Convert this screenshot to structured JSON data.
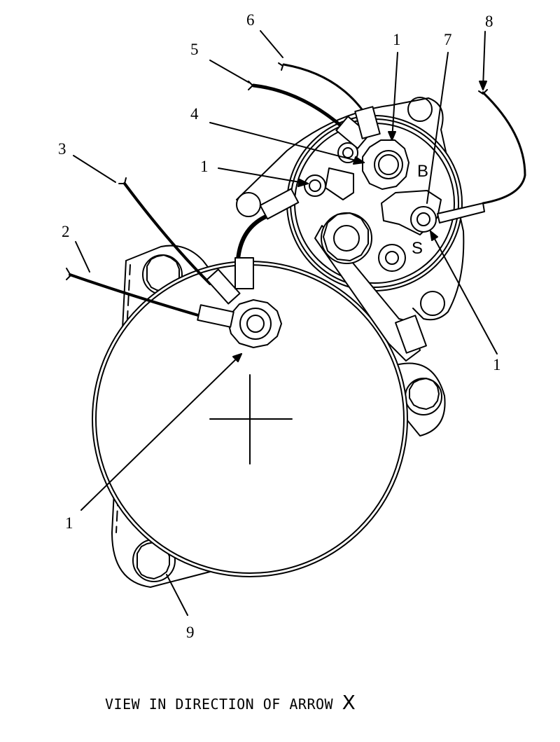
{
  "callouts": {
    "c1_top": "1",
    "c1_left": "1",
    "c1_right": "1",
    "c1_bottom": "1",
    "c2": "2",
    "c3": "3",
    "c4": "4",
    "c5": "5",
    "c6": "6",
    "c7": "7",
    "c8": "8",
    "c9": "9"
  },
  "terminal_labels": {
    "battery": "B",
    "solenoid": "S"
  },
  "caption": {
    "text": "VIEW IN DIRECTION OF ARROW",
    "arrow_letter": "X"
  }
}
